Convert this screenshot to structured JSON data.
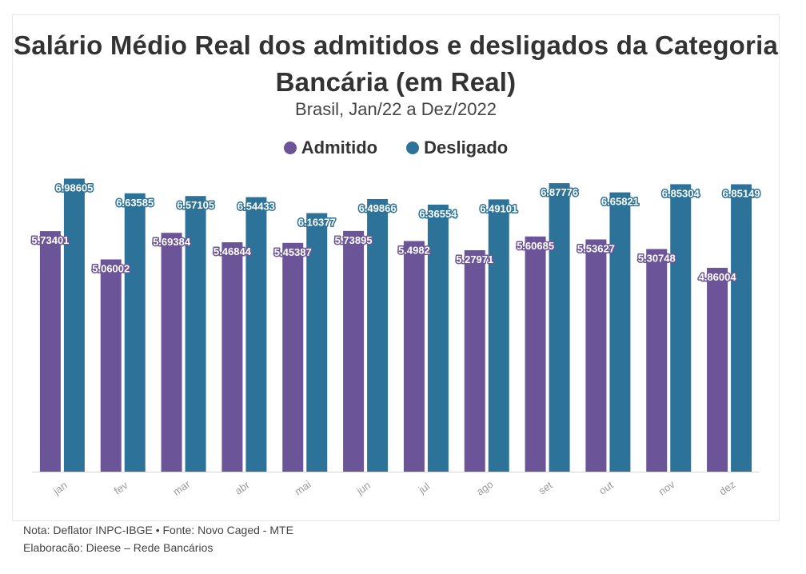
{
  "title": "Salário Médio Real dos admitidos e desligados da Categoria Bancária (em Real)",
  "subtitle": "Brasil, Jan/22 a Dez/2022",
  "colors": {
    "admitido": "#6c5498",
    "desligado": "#2d7399"
  },
  "footer": {
    "note": "Nota: Deflator INPC-IBGE • Fonte: Novo Caged - MTE",
    "credit": "Elaboracão: Dieese – Rede Bancários"
  },
  "chart_data": {
    "type": "bar",
    "categories": [
      "jan",
      "fev",
      "mar",
      "abr",
      "mai",
      "jun",
      "jul",
      "ago",
      "set",
      "out",
      "nov",
      "dez"
    ],
    "series": [
      {
        "name": "Admitido",
        "values": [
          5.73401,
          5.06002,
          5.69384,
          5.46844,
          5.45387,
          5.73895,
          5.4982,
          5.27971,
          5.60685,
          5.53627,
          5.30748,
          4.86004
        ]
      },
      {
        "name": "Desligado",
        "values": [
          6.98605,
          6.63585,
          6.57105,
          6.54433,
          6.16377,
          6.49866,
          6.36554,
          6.49101,
          6.87776,
          6.65821,
          6.85304,
          6.85149
        ]
      }
    ],
    "ylim": [
      0,
      7
    ],
    "legend": "top-center",
    "grid": false
  }
}
